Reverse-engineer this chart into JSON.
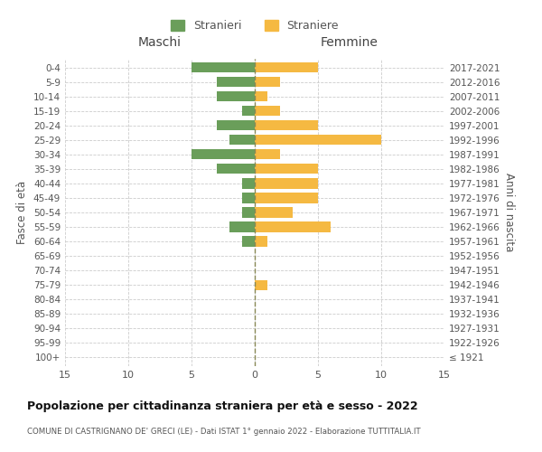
{
  "age_groups": [
    "100+",
    "95-99",
    "90-94",
    "85-89",
    "80-84",
    "75-79",
    "70-74",
    "65-69",
    "60-64",
    "55-59",
    "50-54",
    "45-49",
    "40-44",
    "35-39",
    "30-34",
    "25-29",
    "20-24",
    "15-19",
    "10-14",
    "5-9",
    "0-4"
  ],
  "birth_years": [
    "≤ 1921",
    "1922-1926",
    "1927-1931",
    "1932-1936",
    "1937-1941",
    "1942-1946",
    "1947-1951",
    "1952-1956",
    "1957-1961",
    "1962-1966",
    "1967-1971",
    "1972-1976",
    "1977-1981",
    "1982-1986",
    "1987-1991",
    "1992-1996",
    "1997-2001",
    "2002-2006",
    "2007-2011",
    "2012-2016",
    "2017-2021"
  ],
  "maschi": [
    0,
    0,
    0,
    0,
    0,
    0,
    0,
    0,
    1,
    2,
    1,
    1,
    1,
    3,
    5,
    2,
    3,
    1,
    3,
    3,
    5
  ],
  "femmine": [
    0,
    0,
    0,
    0,
    0,
    1,
    0,
    0,
    1,
    6,
    3,
    5,
    5,
    5,
    2,
    10,
    5,
    2,
    1,
    2,
    5
  ],
  "maschi_color": "#6a9e5a",
  "femmine_color": "#f5b942",
  "center_line_color": "#888855",
  "grid_color": "#cccccc",
  "title": "Popolazione per cittadinanza straniera per età e sesso - 2022",
  "subtitle": "COMUNE DI CASTRIGNANO DE' GRECI (LE) - Dati ISTAT 1° gennaio 2022 - Elaborazione TUTTITALIA.IT",
  "ylabel_left": "Fasce di età",
  "ylabel_right": "Anni di nascita",
  "xlabel_maschi": "Maschi",
  "xlabel_femmine": "Femmine",
  "legend_maschi": "Stranieri",
  "legend_femmine": "Straniere",
  "xlim": 15,
  "background_color": "#ffffff",
  "bar_height": 0.7
}
